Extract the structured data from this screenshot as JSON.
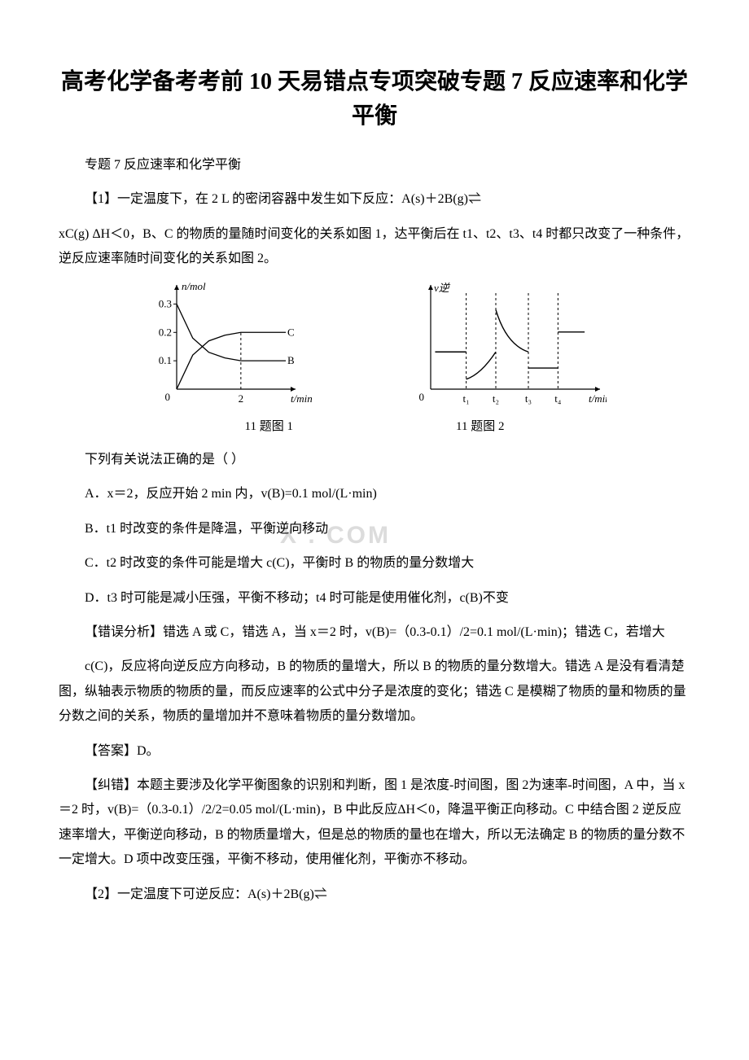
{
  "title": "高考化学备考考前 10 天易错点专项突破专题 7 反应速率和化学平衡",
  "subtitle": "专题 7 反应速率和化学平衡",
  "q1_intro": "【1】一定温度下，在 2 L 的密闭容器中发生如下反应：A(s)＋2B(g)⇌",
  "q1_cont": "xC(g) ΔH＜0，B、C 的物质的量随时间变化的关系如图 1，达平衡后在 t1、t2、t3、t4 时都只改变了一种条件，逆反应速率随时间变化的关系如图 2。",
  "fig1": {
    "type": "line",
    "caption": "11 题图 1",
    "xlabel": "t/min",
    "ylabel": "n/mol",
    "x_range": [
      0,
      3.5
    ],
    "y_range": [
      0,
      0.35
    ],
    "y_ticks": [
      0.1,
      0.2,
      0.3
    ],
    "y_tick_labels": [
      "0.1",
      "0.2",
      "0.3"
    ],
    "x_mark": 2,
    "series": [
      {
        "name": "C",
        "label": "C",
        "points": [
          [
            0,
            0
          ],
          [
            0.5,
            0.12
          ],
          [
            1,
            0.17
          ],
          [
            1.5,
            0.19
          ],
          [
            2,
            0.2
          ],
          [
            3.4,
            0.2
          ]
        ],
        "label_x": 3.45
      },
      {
        "name": "B",
        "label": "B",
        "points": [
          [
            0,
            0.3
          ],
          [
            0.5,
            0.18
          ],
          [
            1,
            0.13
          ],
          [
            1.5,
            0.11
          ],
          [
            2,
            0.1
          ],
          [
            3.4,
            0.1
          ]
        ],
        "label_x": 3.45
      }
    ],
    "axis_color": "#000000",
    "line_color": "#000000",
    "font_size": 13
  },
  "fig2": {
    "type": "line",
    "caption": "11 题图 2",
    "xlabel": "t/min",
    "ylabel": "v逆",
    "x_range": [
      0,
      5.5
    ],
    "y_range": [
      0,
      4
    ],
    "t_marks": [
      1.2,
      2.2,
      3.3,
      4.3
    ],
    "t_labels": [
      "t₁",
      "t₂",
      "t₃",
      "t₄"
    ],
    "baseline_y": 1.5,
    "axis_color": "#000000",
    "line_color": "#000000",
    "font_size": 13
  },
  "q1_stem": "下列有关说法正确的是（ ）",
  "q1_A": "A．x＝2，反应开始 2 min 内，v(B)=0.1 mol/(L·min)",
  "q1_B": "B．t1 时改变的条件是降温，平衡逆向移动",
  "q1_C": "C．t2 时改变的条件可能是增大 c(C)，平衡时 B 的物质的量分数增大",
  "q1_D": "D．t3 时可能是减小压强，平衡不移动；t4 时可能是使用催化剂，c(B)不变",
  "q1_err1": "【错误分析】错选 A 或 C，错选 A，当 x＝2 时，v(B)=（0.3-0.1）/2=0.1 mol/(L·min)；错选 C，若增大",
  "q1_err2": "c(C)，反应将向逆反应方向移动，B 的物质的量增大，所以 B 的物质的量分数增大。错选 A 是没有看清楚图，纵轴表示物质的物质的量，而反应速率的公式中分子是浓度的变化；错选 C 是模糊了物质的量和物质的量分数之间的关系，物质的量增加并不意味着物质的量分数增加。",
  "q1_ans": "【答案】D。",
  "q1_fix": "【纠错】本题主要涉及化学平衡图象的识别和判断，图 1 是浓度-时间图，图 2为速率-时间图，A 中，当 x＝2 时，v(B)=（0.3-0.1）/2/2=0.05 mol/(L·min)，B 中此反应ΔH＜0，降温平衡正向移动。C 中结合图 2 逆反应速率增大，平衡逆向移动，B 的物质量增大，但是总的物质的量也在增大，所以无法确定 B 的物质的量分数不一定增大。D 项中改变压强，平衡不移动，使用催化剂，平衡亦不移动。",
  "q2_intro": "【2】一定温度下可逆反应：A(s)＋2B(g)⇌"
}
